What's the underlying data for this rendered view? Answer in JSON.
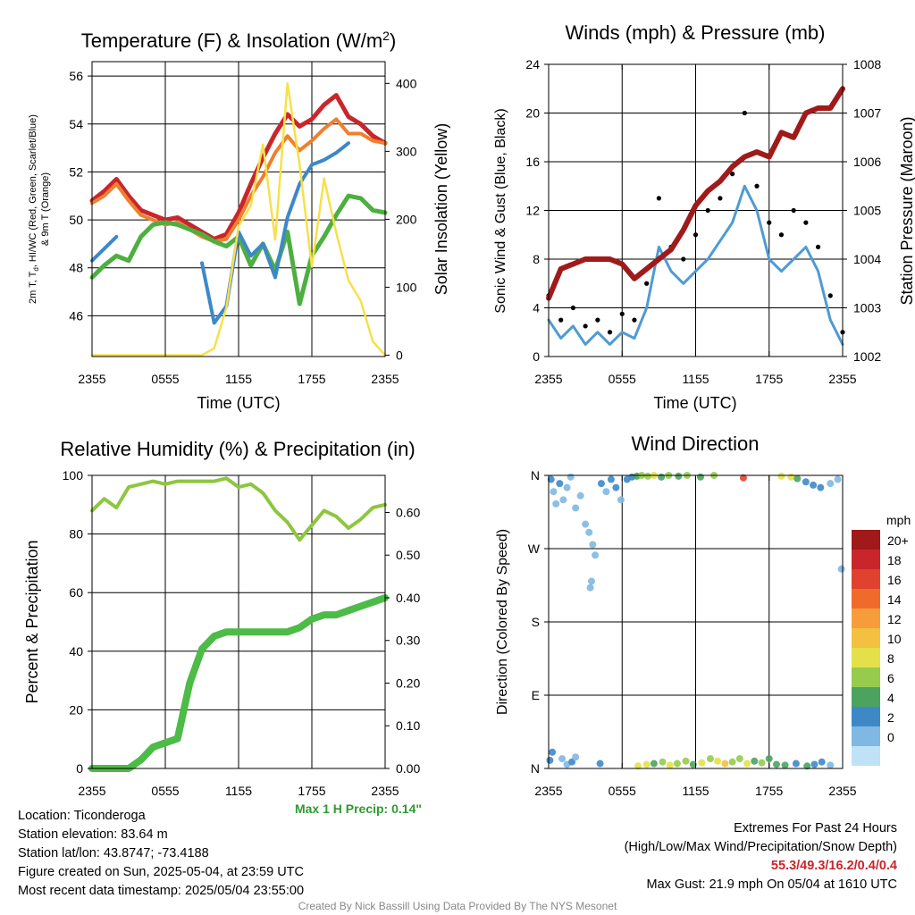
{
  "footer": {
    "location": "Location: Ticonderoga",
    "elevation": "Station elevation: 83.64 m",
    "latlon": "Station lat/lon: 43.8747; -73.4188",
    "created": "Figure created on Sun, 2025-05-04, at 23:59 UTC",
    "recent": "Most recent data timestamp: 2025/05/04 23:55:00",
    "extremes_title": "Extremes For Past 24 Hours",
    "extremes_legend": "(High/Low/Max Wind/Precipitation/Snow Depth)",
    "extremes_values": "55.3/49.3/16.2/0.4/0.4",
    "max_gust": "Max Gust: 21.9 mph On 05/04 at 1610 UTC",
    "credit": "Created By Nick Bassill Using Data Provided By The NYS Mesonet"
  },
  "chart_data": [
    {
      "type": "line",
      "title": "Temperature (F) & Insolation (W/m²)",
      "xlabel": "Time (UTC)",
      "ylabel": "2m T, Td, HI/WC (Red, Green, Scarlet/Blue) & 9m T (Orange)",
      "y2label": "Solar Insolation (Yellow)",
      "x_ticks": [
        "2355",
        "0555",
        "1155",
        "1755",
        "2355"
      ],
      "ylim": [
        44.3,
        56.6
      ],
      "y_ticks": [
        46,
        48,
        50,
        52,
        54,
        56
      ],
      "y2lim": [
        -2,
        432
      ],
      "y2_ticks": [
        0,
        100,
        200,
        300,
        400
      ],
      "x_hours": [
        0,
        1,
        2,
        3,
        4,
        5,
        6,
        7,
        8,
        9,
        10,
        11,
        12,
        13,
        14,
        15,
        16,
        17,
        18,
        19,
        20,
        21,
        22,
        23,
        24
      ],
      "series": [
        {
          "name": "2m T",
          "color": "#c8262b",
          "values": [
            50.8,
            51.2,
            51.7,
            51.0,
            50.4,
            50.2,
            50.0,
            50.1,
            49.8,
            49.5,
            49.2,
            49.4,
            50.3,
            51.5,
            52.6,
            53.6,
            54.4,
            53.9,
            54.2,
            54.8,
            55.2,
            54.3,
            54.0,
            53.5,
            53.2
          ]
        },
        {
          "name": "9m T",
          "color": "#f07f2e",
          "values": [
            50.7,
            51.0,
            51.5,
            50.8,
            50.2,
            50.0,
            49.8,
            49.9,
            49.6,
            49.3,
            49.1,
            49.2,
            50.0,
            51.0,
            51.8,
            52.8,
            53.5,
            52.9,
            53.3,
            53.8,
            54.2,
            53.6,
            53.6,
            53.3,
            53.2
          ]
        },
        {
          "name": "Td",
          "color": "#4daf40",
          "values": [
            47.6,
            48.1,
            48.5,
            48.3,
            49.3,
            49.8,
            49.9,
            49.8,
            49.6,
            49.4,
            49.1,
            48.9,
            49.3,
            48.1,
            49.0,
            47.9,
            49.5,
            46.5,
            48.5,
            49.3,
            50.2,
            51.0,
            50.9,
            50.4,
            50.3
          ]
        },
        {
          "name": "HI/WC",
          "color": "#3d88c8",
          "values": [
            48.3,
            48.8,
            49.3,
            null,
            null,
            null,
            null,
            null,
            null,
            48.2,
            45.7,
            46.4,
            49.5,
            48.5,
            49.0,
            47.6,
            50.1,
            51.5,
            52.3,
            52.5,
            52.8,
            53.2,
            null,
            null,
            null
          ]
        },
        {
          "name": "Solar",
          "color": "#f7e04b",
          "axis": "y2",
          "values": [
            0,
            0,
            0,
            0,
            0,
            0,
            0,
            0,
            0,
            0,
            10,
            70,
            190,
            220,
            310,
            170,
            400,
            280,
            130,
            260,
            180,
            110,
            80,
            20,
            0
          ]
        }
      ]
    },
    {
      "type": "line",
      "title": "Winds (mph) & Pressure (mb)",
      "xlabel": "Time (UTC)",
      "ylabel": "Sonic Wind & Gust (Blue, Black)",
      "y2label": "Station Pressure (Maroon)",
      "x_ticks": [
        "2355",
        "0555",
        "1155",
        "1755",
        "2355"
      ],
      "ylim": [
        0,
        24
      ],
      "y_ticks": [
        0,
        4,
        8,
        12,
        16,
        20,
        24
      ],
      "y2lim": [
        1002,
        1008
      ],
      "y2_ticks": [
        1002,
        1003,
        1004,
        1005,
        1006,
        1007,
        1008
      ],
      "x_hours": [
        0,
        1,
        2,
        3,
        4,
        5,
        6,
        7,
        8,
        9,
        10,
        11,
        12,
        13,
        14,
        15,
        16,
        17,
        18,
        19,
        20,
        21,
        22,
        23,
        24
      ],
      "series": [
        {
          "name": "Wind",
          "color": "#4f9bd3",
          "values": [
            3,
            1.5,
            2.5,
            1,
            2,
            1,
            2,
            1.5,
            4,
            9,
            7,
            6,
            7,
            8,
            9.5,
            11,
            14,
            12,
            8,
            7,
            8,
            9,
            7,
            3,
            1
          ]
        },
        {
          "name": "Gust",
          "color": "#000000",
          "values": [
            5,
            3,
            4,
            2.5,
            3,
            2,
            3.5,
            3,
            6,
            13,
            9,
            8,
            10,
            12,
            13,
            15,
            20,
            14,
            11,
            10,
            12,
            11,
            9,
            5,
            2
          ]
        },
        {
          "name": "Pressure",
          "color": "#a01a1a",
          "axis": "y2",
          "values": [
            1003.2,
            1003.8,
            1003.9,
            1004.0,
            1004.0,
            1004.0,
            1003.9,
            1003.6,
            1003.8,
            1004.0,
            1004.2,
            1004.6,
            1005.1,
            1005.4,
            1005.6,
            1005.9,
            1006.1,
            1006.2,
            1006.1,
            1006.6,
            1006.5,
            1007.0,
            1007.1,
            1007.1,
            1007.5
          ]
        }
      ]
    },
    {
      "type": "line",
      "title": "Relative Humidity (%) & Precipitation (in)",
      "ylabel": "Percent & Precipitation",
      "x_ticks": [
        "2355",
        "0555",
        "1155",
        "1755",
        "2355"
      ],
      "ylim": [
        0,
        100
      ],
      "y_ticks": [
        0,
        20,
        40,
        60,
        80,
        100
      ],
      "y2lim": [
        0,
        0.6869
      ],
      "y2_ticks": [
        0.0,
        0.1,
        0.2,
        0.3,
        0.4,
        0.5,
        0.6
      ],
      "y2_tick_labels": [
        "0.00",
        "0.10",
        "0.20",
        "0.30",
        "0.40",
        "0.50",
        "0.60"
      ],
      "annotation": "Max 1 H Precip: 0.14\"",
      "x_hours": [
        0,
        1,
        2,
        3,
        4,
        5,
        6,
        7,
        8,
        9,
        10,
        11,
        12,
        13,
        14,
        15,
        16,
        17,
        18,
        19,
        20,
        21,
        22,
        23,
        24
      ],
      "series": [
        {
          "name": "RH",
          "color": "#8dc63f",
          "values": [
            88,
            92,
            89,
            96,
            97,
            98,
            97,
            98,
            98,
            98,
            98,
            99,
            96,
            97,
            94,
            88,
            84,
            78,
            83,
            88,
            86,
            82,
            85,
            89,
            90
          ]
        },
        {
          "name": "Precip",
          "color": "#4dbb47",
          "axis": "y2",
          "values": [
            0.0,
            0.0,
            0.0,
            0.0,
            0.02,
            0.05,
            0.06,
            0.07,
            0.2,
            0.28,
            0.31,
            0.32,
            0.32,
            0.32,
            0.32,
            0.32,
            0.32,
            0.33,
            0.35,
            0.36,
            0.36,
            0.37,
            0.38,
            0.39,
            0.4
          ]
        }
      ]
    },
    {
      "type": "scatter",
      "title": "Wind Direction",
      "ylabel": "Direction (Colored By Speed)",
      "x_ticks": [
        "2355",
        "0555",
        "1155",
        "1755",
        "2355"
      ],
      "y_ticks": [
        "N",
        "E",
        "S",
        "W",
        "N"
      ],
      "y_tick_values": [
        0,
        90,
        180,
        270,
        360
      ],
      "ylim": [
        0,
        360
      ],
      "legend_title": "mph",
      "legend_labels": [
        "20+",
        "18",
        "16",
        "14",
        "12",
        "10",
        "8",
        "6",
        "4",
        "2",
        "0"
      ],
      "legend_colors": [
        "#a01a1a",
        "#c8262b",
        "#e0422f",
        "#f06a2c",
        "#f79c3a",
        "#f4c040",
        "#e3e04a",
        "#96cb4e",
        "#4ca360",
        "#3f88c8",
        "#7fb8e2",
        "#bfe2f7"
      ],
      "points": [
        {
          "hour": 0.2,
          "dir": 355,
          "speed": 3
        },
        {
          "hour": 0.4,
          "dir": 340,
          "speed": 2
        },
        {
          "hour": 0.6,
          "dir": 325,
          "speed": 1
        },
        {
          "hour": 0.9,
          "dir": 350,
          "speed": 3
        },
        {
          "hour": 1.2,
          "dir": 330,
          "speed": 2
        },
        {
          "hour": 1.5,
          "dir": 345,
          "speed": 1
        },
        {
          "hour": 1.8,
          "dir": 358,
          "speed": 2
        },
        {
          "hour": 2.2,
          "dir": 320,
          "speed": 1
        },
        {
          "hour": 2.6,
          "dir": 335,
          "speed": 1
        },
        {
          "hour": 3.0,
          "dir": 300,
          "speed": 2
        },
        {
          "hour": 3.3,
          "dir": 290,
          "speed": 1
        },
        {
          "hour": 3.6,
          "dir": 275,
          "speed": 2
        },
        {
          "hour": 3.8,
          "dir": 262,
          "speed": 1
        },
        {
          "hour": 3.5,
          "dir": 230,
          "speed": 1
        },
        {
          "hour": 3.4,
          "dir": 222,
          "speed": 1
        },
        {
          "hour": 4.3,
          "dir": 350,
          "speed": 3
        },
        {
          "hour": 4.7,
          "dir": 340,
          "speed": 2
        },
        {
          "hour": 5.1,
          "dir": 355,
          "speed": 4
        },
        {
          "hour": 5.5,
          "dir": 345,
          "speed": 3
        },
        {
          "hour": 5.9,
          "dir": 330,
          "speed": 2
        },
        {
          "hour": 6.4,
          "dir": 355,
          "speed": 3
        },
        {
          "hour": 6.8,
          "dir": 358,
          "speed": 4
        },
        {
          "hour": 7.2,
          "dir": 359,
          "speed": 5
        },
        {
          "hour": 7.6,
          "dir": 360,
          "speed": 8
        },
        {
          "hour": 8.1,
          "dir": 359,
          "speed": 7
        },
        {
          "hour": 8.6,
          "dir": 360,
          "speed": 10
        },
        {
          "hour": 9.2,
          "dir": 358,
          "speed": 6
        },
        {
          "hour": 9.8,
          "dir": 360,
          "speed": 7
        },
        {
          "hour": 10.6,
          "dir": 359,
          "speed": 6
        },
        {
          "hour": 11.3,
          "dir": 360,
          "speed": 8
        },
        {
          "hour": 12.4,
          "dir": 358,
          "speed": 5
        },
        {
          "hour": 13.5,
          "dir": 360,
          "speed": 7
        },
        {
          "hour": 15.9,
          "dir": 357,
          "speed": 18
        },
        {
          "hour": 19.0,
          "dir": 359,
          "speed": 9
        },
        {
          "hour": 19.8,
          "dir": 358,
          "speed": 10
        },
        {
          "hour": 20.3,
          "dir": 356,
          "speed": 5
        },
        {
          "hour": 21.0,
          "dir": 352,
          "speed": 4
        },
        {
          "hour": 21.6,
          "dir": 348,
          "speed": 3
        },
        {
          "hour": 22.2,
          "dir": 345,
          "speed": 3
        },
        {
          "hour": 23.0,
          "dir": 350,
          "speed": 2
        },
        {
          "hour": 23.6,
          "dir": 355,
          "speed": 1
        },
        {
          "hour": 23.9,
          "dir": 245,
          "speed": 1
        },
        {
          "hour": 0.1,
          "dir": 10,
          "speed": 4
        },
        {
          "hour": 0.3,
          "dir": 20,
          "speed": 3
        },
        {
          "hour": 1.1,
          "dir": 12,
          "speed": 2
        },
        {
          "hour": 1.5,
          "dir": 5,
          "speed": 1
        },
        {
          "hour": 1.9,
          "dir": 8,
          "speed": 3
        },
        {
          "hour": 2.2,
          "dir": 14,
          "speed": 2
        },
        {
          "hour": 4.2,
          "dir": 6,
          "speed": 4
        },
        {
          "hour": 7.3,
          "dir": 3,
          "speed": 10
        },
        {
          "hour": 8.0,
          "dir": 5,
          "speed": 9
        },
        {
          "hour": 8.6,
          "dir": 6,
          "speed": 6
        },
        {
          "hour": 9.3,
          "dir": 8,
          "speed": 7
        },
        {
          "hour": 9.9,
          "dir": 4,
          "speed": 10
        },
        {
          "hour": 10.5,
          "dir": 6,
          "speed": 7
        },
        {
          "hour": 11.2,
          "dir": 9,
          "speed": 8
        },
        {
          "hour": 11.8,
          "dir": 5,
          "speed": 6
        },
        {
          "hour": 12.5,
          "dir": 7,
          "speed": 9
        },
        {
          "hour": 13.2,
          "dir": 12,
          "speed": 7
        },
        {
          "hour": 13.8,
          "dir": 9,
          "speed": 10
        },
        {
          "hour": 14.4,
          "dir": 6,
          "speed": 12
        },
        {
          "hour": 15.0,
          "dir": 8,
          "speed": 8
        },
        {
          "hour": 15.6,
          "dir": 12,
          "speed": 7
        },
        {
          "hour": 16.2,
          "dir": 6,
          "speed": 9
        },
        {
          "hour": 16.8,
          "dir": 9,
          "speed": 6
        },
        {
          "hour": 17.4,
          "dir": 7,
          "speed": 7
        },
        {
          "hour": 18.0,
          "dir": 12,
          "speed": 5
        },
        {
          "hour": 18.6,
          "dir": 5,
          "speed": 6
        },
        {
          "hour": 19.3,
          "dir": 4,
          "speed": 5
        },
        {
          "hour": 20.2,
          "dir": 6,
          "speed": 4
        },
        {
          "hour": 21.1,
          "dir": 3,
          "speed": 6
        },
        {
          "hour": 21.7,
          "dir": 5,
          "speed": 3
        },
        {
          "hour": 22.3,
          "dir": 8,
          "speed": 4
        },
        {
          "hour": 23.0,
          "dir": 4,
          "speed": 2
        }
      ]
    }
  ]
}
